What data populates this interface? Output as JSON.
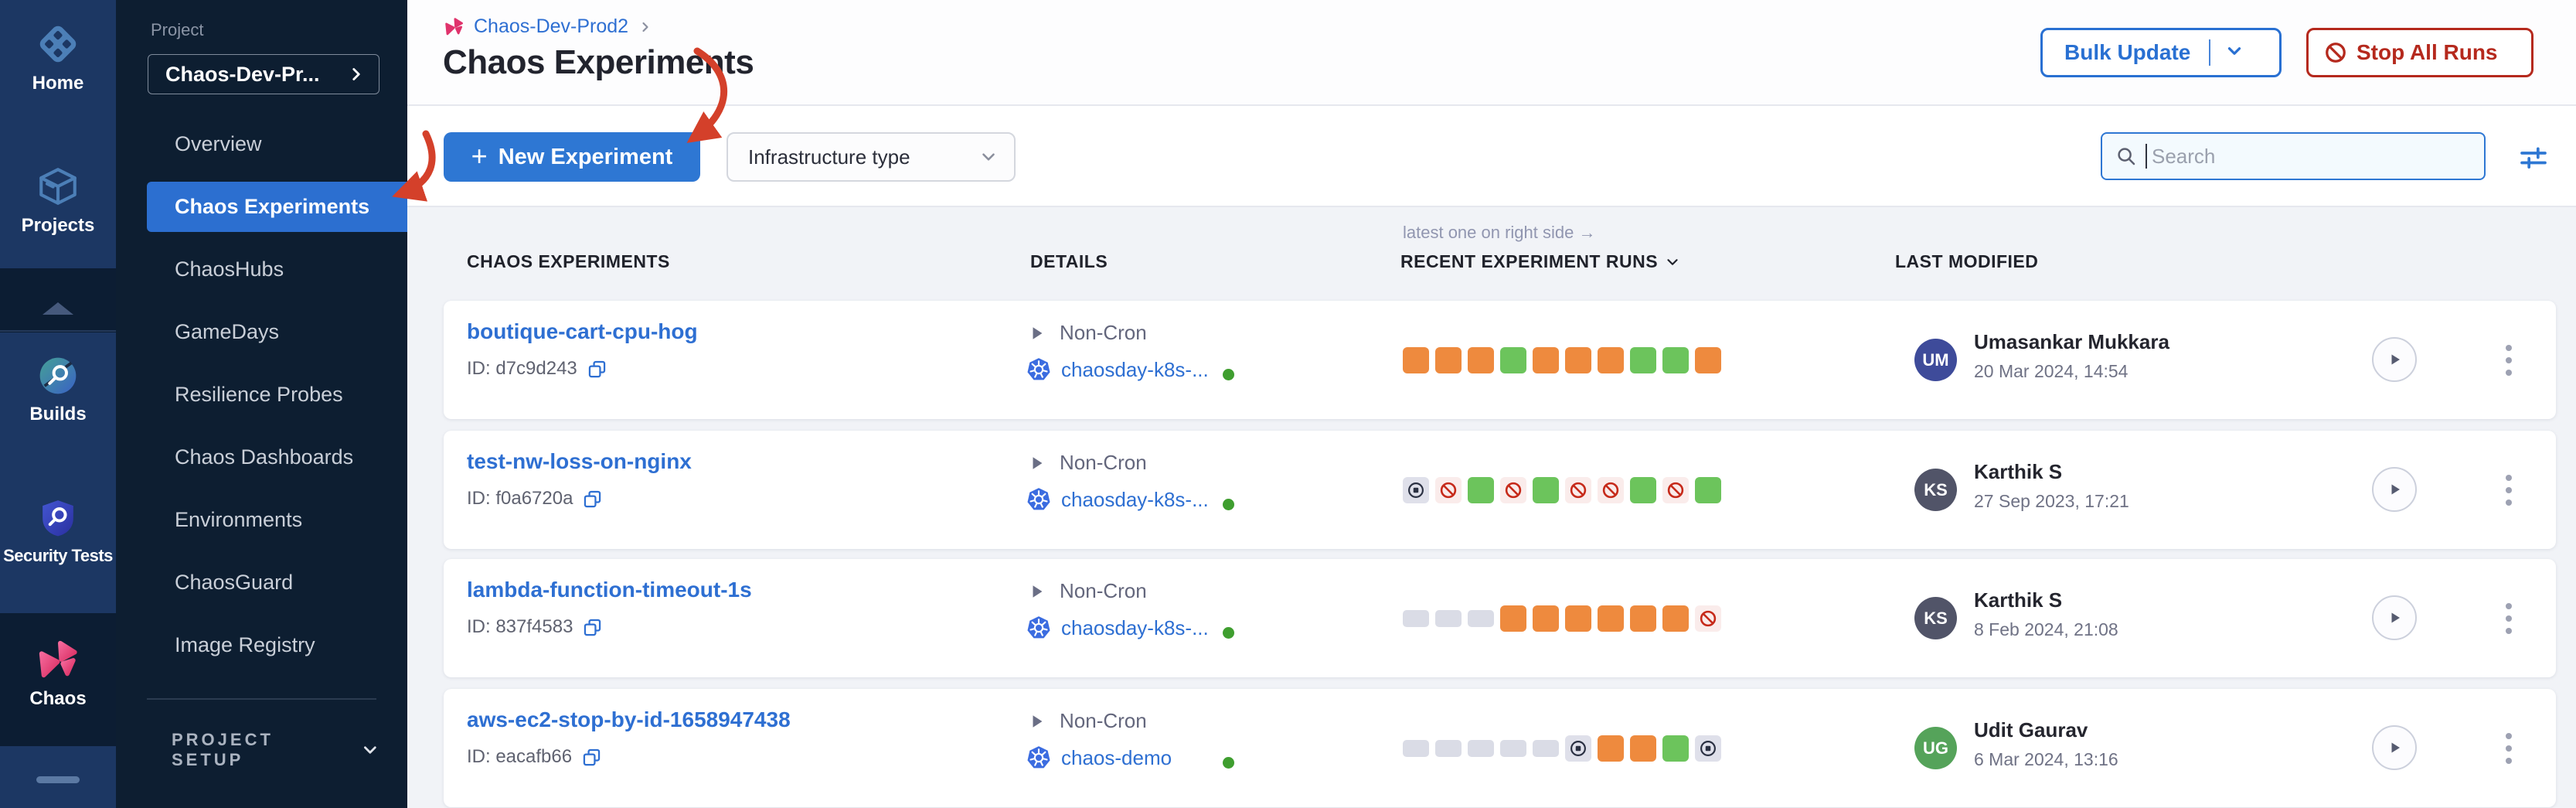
{
  "sidebar": {
    "modules": [
      {
        "label": "Home"
      },
      {
        "label": "Projects"
      },
      {
        "label": "Builds"
      },
      {
        "label": "Security Tests"
      },
      {
        "label": "Chaos"
      }
    ]
  },
  "project_nav": {
    "section_label": "Project",
    "selector_value": "Chaos-Dev-Pr...",
    "items": [
      "Overview",
      "Chaos Experiments",
      "ChaosHubs",
      "GameDays",
      "Resilience Probes",
      "Chaos Dashboards",
      "Environments",
      "ChaosGuard",
      "Image Registry"
    ],
    "selected_item": "Chaos Experiments",
    "footer_label": "PROJECT SETUP"
  },
  "header": {
    "breadcrumb": "Chaos-Dev-Prod2",
    "title": "Chaos Experiments",
    "bulk_update_label": "Bulk Update",
    "stop_all_runs_label": "Stop All Runs"
  },
  "toolbar": {
    "new_experiment_label": "New Experiment",
    "infrastructure_filter_label": "Infrastructure type",
    "search_placeholder": "Search"
  },
  "table": {
    "note": "latest one on right side →",
    "columns": [
      "CHAOS EXPERIMENTS",
      "DETAILS",
      "RECENT EXPERIMENT RUNS",
      "LAST MODIFIED"
    ]
  },
  "experiments": [
    {
      "name": "boutique-cart-cpu-hog",
      "id_label": "ID: d7c9d243",
      "schedule": "Non-Cron",
      "infrastructure": "chaosday-k8s-...",
      "runs": [
        "completed",
        "completed",
        "completed",
        "success",
        "completed",
        "completed",
        "completed",
        "success",
        "success",
        "completed"
      ],
      "modified": {
        "initials": "UM",
        "name": "Umasankar Mukkara",
        "date": "20 Mar 2024, 14:54",
        "color": "#3e4b9a"
      }
    },
    {
      "name": "test-nw-loss-on-nginx",
      "id_label": "ID: f0a6720a",
      "schedule": "Non-Cron",
      "infrastructure": "chaosday-k8s-...",
      "runs": [
        "stopped",
        "error",
        "success",
        "error",
        "success",
        "error",
        "error",
        "success",
        "error",
        "success"
      ],
      "modified": {
        "initials": "KS",
        "name": "Karthik S",
        "date": "27 Sep 2023, 17:21",
        "color": "#515468"
      }
    },
    {
      "name": "lambda-function-timeout-1s",
      "id_label": "ID: 837f4583",
      "schedule": "Non-Cron",
      "infrastructure": "chaosday-k8s-...",
      "runs": [
        "none",
        "none",
        "none",
        "completed",
        "completed",
        "completed",
        "completed",
        "completed",
        "completed",
        "error"
      ],
      "modified": {
        "initials": "KS",
        "name": "Karthik S",
        "date": "8 Feb 2024, 21:08",
        "color": "#515468"
      }
    },
    {
      "name": "aws-ec2-stop-by-id-1658947438",
      "id_label": "ID: eacafb66",
      "schedule": "Non-Cron",
      "infrastructure": "chaos-demo",
      "runs": [
        "none",
        "none",
        "none",
        "none",
        "none",
        "stopped",
        "completed",
        "completed",
        "success",
        "stopped"
      ],
      "modified": {
        "initials": "UG",
        "name": "Udit Gaurav",
        "date": "6 Mar 2024, 13:16",
        "color": "#55a35a"
      }
    }
  ],
  "run_colors": {
    "completed": "#ee8a3e",
    "success": "#6cc45c",
    "none": "#dadce6",
    "stopped_bg": "#dfe0ea",
    "error_bg": "#faeceb",
    "stopped_fg": "#2a3042",
    "error_fg": "#c62a1a"
  },
  "annotation_color": "#d4402a"
}
